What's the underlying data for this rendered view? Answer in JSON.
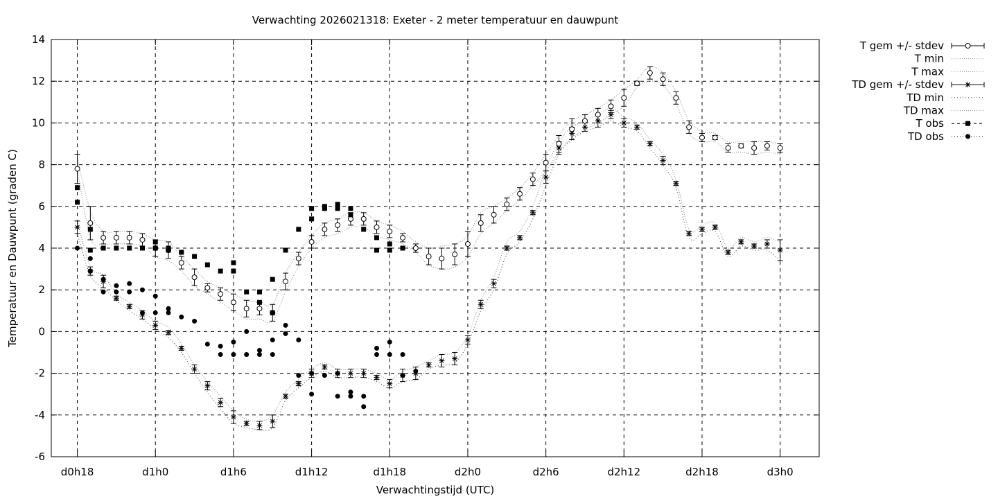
{
  "chart_data": {
    "type": "line",
    "title": "Verwachting 2026021318: Exeter - 2 meter temperatuur en dauwpunt",
    "xlabel": "Verwachtingstijd (UTC)",
    "ylabel": "Temperatuur en Dauwpunt (graden C)",
    "ylim": [
      -6,
      14
    ],
    "xlim": [
      -2,
      57
    ],
    "x_unit": "hours since d0h18",
    "yticks": [
      "-6",
      "-4",
      "-2",
      "0",
      "2",
      "4",
      "6",
      "8",
      "10",
      "12",
      "14"
    ],
    "xticks": [
      {
        "x": 0,
        "label": "d0h18"
      },
      {
        "x": 6,
        "label": "d1h0"
      },
      {
        "x": 12,
        "label": "d1h6"
      },
      {
        "x": 18,
        "label": "d1h12"
      },
      {
        "x": 24,
        "label": "d1h18"
      },
      {
        "x": 30,
        "label": "d2h0"
      },
      {
        "x": 36,
        "label": "d2h6"
      },
      {
        "x": 42,
        "label": "d2h12"
      },
      {
        "x": 48,
        "label": "d2h18"
      },
      {
        "x": 54,
        "label": "d3h0"
      }
    ],
    "grid": true,
    "legend_position": "outside-right",
    "legend": [
      "T gem +/- stdev",
      "T min",
      "T max",
      "TD gem +/- stdev",
      "TD min",
      "TD max",
      "T obs",
      "TD obs"
    ],
    "T_gem": {
      "x": [
        0,
        1,
        2,
        3,
        4,
        5,
        6,
        7,
        8,
        9,
        10,
        11,
        12,
        13,
        14,
        15,
        16,
        17,
        18,
        19,
        20,
        21,
        22,
        23,
        24,
        25,
        26,
        27,
        28,
        29,
        30,
        31,
        32,
        33,
        34,
        35,
        36,
        37,
        38,
        39,
        40,
        41,
        42,
        43,
        44,
        45,
        46,
        47,
        48,
        49,
        50,
        51,
        52,
        53,
        54
      ],
      "y": [
        7.8,
        5.2,
        4.5,
        4.5,
        4.5,
        4.4,
        4.0,
        3.9,
        3.3,
        2.6,
        2.1,
        1.8,
        1.4,
        1.1,
        1.1,
        0.9,
        2.4,
        3.5,
        4.3,
        4.9,
        5.1,
        5.4,
        5.4,
        5.0,
        4.8,
        4.5,
        4.0,
        3.6,
        3.5,
        3.7,
        4.2,
        5.2,
        5.6,
        6.1,
        6.6,
        7.3,
        8.1,
        9.0,
        9.7,
        10.1,
        10.4,
        10.8,
        11.2,
        11.9,
        12.4,
        12.1,
        11.2,
        9.8,
        9.3,
        9.3,
        8.8,
        8.9,
        8.8,
        8.9,
        8.8
      ],
      "err": [
        0.7,
        0.8,
        0.3,
        0.3,
        0.3,
        0.3,
        0.4,
        0.4,
        0.3,
        0.4,
        0.2,
        0.3,
        0.4,
        0.4,
        0.3,
        0.4,
        0.4,
        0.3,
        0.3,
        0.3,
        0.3,
        0.3,
        0.3,
        0.3,
        0.3,
        0.2,
        0.2,
        0.4,
        0.5,
        0.5,
        0.6,
        0.4,
        0.4,
        0.3,
        0.3,
        0.3,
        0.4,
        0.4,
        0.5,
        0.3,
        0.3,
        0.3,
        0.4,
        0.1,
        0.3,
        0.3,
        0.3,
        0.3,
        0.2,
        0.1,
        0.2,
        0.1,
        0.3,
        0.2,
        0.2
      ]
    },
    "T_min": [
      7.8,
      4.5,
      4.2,
      4.2,
      4.2,
      4.1,
      3.6,
      3.4,
      2.9,
      2.2,
      1.8,
      1.4,
      1.0,
      0.6,
      0.6,
      0.5,
      1.9,
      3.1,
      4.0,
      4.5,
      4.7,
      5.0,
      5.0,
      4.6,
      4.4,
      4.2,
      3.8,
      3.2,
      3.0,
      3.1,
      3.6,
      4.7,
      5.2,
      5.8,
      6.3,
      7.0,
      7.7,
      8.6,
      9.3,
      9.7,
      10.0,
      10.4,
      10.8,
      11.7,
      12.0,
      11.8,
      10.9,
      9.5,
      9.1,
      9.1,
      8.6,
      8.6,
      8.5,
      8.6,
      8.5
    ],
    "T_max": [
      8.3,
      5.8,
      4.8,
      4.8,
      4.8,
      4.7,
      4.4,
      4.3,
      3.6,
      3.0,
      2.4,
      2.1,
      1.8,
      1.5,
      1.4,
      1.3,
      2.8,
      3.8,
      4.6,
      5.2,
      5.4,
      5.7,
      5.7,
      5.3,
      5.1,
      4.8,
      4.3,
      4.0,
      4.1,
      4.2,
      4.6,
      5.7,
      6.0,
      6.4,
      6.9,
      7.6,
      8.5,
      9.4,
      10.1,
      10.4,
      10.7,
      11.1,
      11.6,
      12.1,
      12.7,
      12.4,
      11.5,
      10.1,
      9.6,
      9.5,
      9.1,
      9.1,
      9.1,
      9.1,
      9.0
    ],
    "TD_gem": {
      "x": [
        0,
        1,
        2,
        3,
        4,
        5,
        6,
        7,
        8,
        9,
        10,
        11,
        12,
        13,
        14,
        15,
        16,
        17,
        18,
        19,
        20,
        21,
        22,
        23,
        24,
        25,
        26,
        27,
        28,
        29,
        30,
        31,
        32,
        33,
        34,
        35,
        36,
        37,
        38,
        39,
        40,
        41,
        42,
        43,
        44,
        45,
        46,
        47,
        48,
        49,
        50,
        51,
        52,
        53,
        54
      ],
      "y": [
        5.0,
        2.9,
        2.4,
        1.6,
        1.2,
        0.8,
        0.3,
        -0.05,
        -0.8,
        -1.8,
        -2.6,
        -3.4,
        -4.1,
        -4.4,
        -4.5,
        -4.3,
        -3.1,
        -2.5,
        -2.0,
        -1.7,
        -2.0,
        -2.0,
        -2.0,
        -2.2,
        -2.5,
        -2.1,
        -2.0,
        -1.6,
        -1.4,
        -1.3,
        -0.4,
        1.3,
        2.3,
        4.0,
        4.5,
        5.7,
        7.4,
        8.8,
        9.5,
        9.8,
        10.1,
        10.4,
        10.0,
        9.8,
        9.0,
        8.2,
        7.1,
        4.7,
        4.9,
        5.0,
        3.8,
        4.3,
        4.1,
        4.2,
        3.9
      ],
      "err": [
        0.3,
        0.2,
        0.3,
        0.1,
        0.1,
        0.2,
        0.2,
        0.1,
        0.1,
        0.2,
        0.2,
        0.2,
        0.3,
        0.1,
        0.2,
        0.3,
        0.1,
        0.1,
        0.2,
        0.1,
        0.2,
        0.2,
        0.2,
        0.1,
        0.2,
        0.3,
        0.3,
        0.1,
        0.3,
        0.3,
        0.2,
        0.2,
        0.2,
        0.1,
        0.1,
        0.1,
        0.3,
        0.3,
        0.3,
        0.2,
        0.3,
        0.2,
        0.2,
        0.1,
        0.1,
        0.2,
        0.1,
        0.1,
        0.1,
        0.1,
        0.1,
        0.1,
        0.1,
        0.2,
        0.5
      ]
    },
    "TD_min": [
      4.7,
      2.7,
      2.1,
      1.5,
      1.0,
      0.6,
      0.1,
      -0.3,
      -1.0,
      -2.0,
      -2.9,
      -3.7,
      -4.4,
      -4.6,
      -4.7,
      -4.6,
      -3.3,
      -2.7,
      -2.2,
      -1.9,
      -2.2,
      -2.2,
      -2.2,
      -2.4,
      -2.7,
      -2.4,
      -2.3,
      -1.8,
      -1.6,
      -1.5,
      -0.6,
      1.0,
      2.0,
      3.7,
      4.3,
      5.4,
      7.0,
      8.5,
      9.2,
      9.6,
      9.8,
      10.1,
      9.8,
      9.6,
      8.8,
      8.0,
      6.9,
      4.5,
      4.7,
      4.8,
      3.6,
      4.1,
      3.9,
      3.9,
      3.4
    ],
    "TD_max": [
      5.3,
      3.1,
      2.7,
      1.8,
      1.4,
      1.0,
      0.5,
      0.2,
      -0.6,
      -1.6,
      -2.4,
      -3.1,
      -3.8,
      -4.2,
      -4.3,
      -4.0,
      -2.9,
      -2.3,
      -1.8,
      -1.5,
      -1.8,
      -1.8,
      -1.8,
      -2.0,
      -2.3,
      -1.9,
      -1.7,
      -1.4,
      -1.1,
      -1.0,
      -0.2,
      1.5,
      2.6,
      4.3,
      4.8,
      6.0,
      7.8,
      9.1,
      9.8,
      10.1,
      10.4,
      10.7,
      10.3,
      10.0,
      9.2,
      8.5,
      7.3,
      4.9,
      5.1,
      5.2,
      4.0,
      4.5,
      4.3,
      4.5,
      4.3
    ],
    "T_obs": {
      "x": [
        0,
        0,
        1,
        1,
        2,
        3,
        4,
        5,
        6,
        6,
        7,
        7,
        8,
        9,
        10,
        11,
        12,
        12,
        13,
        14,
        14,
        15,
        15,
        16,
        17,
        18,
        18,
        19,
        19,
        20,
        20,
        21,
        21,
        22,
        23,
        23,
        24,
        24,
        25
      ],
      "y": [
        6.2,
        6.9,
        3.9,
        4.9,
        4.0,
        4.0,
        4.0,
        4.0,
        4.0,
        4.3,
        3.9,
        4.0,
        3.8,
        3.6,
        3.2,
        2.9,
        2.9,
        3.3,
        1.9,
        1.4,
        1.9,
        0.9,
        2.5,
        3.9,
        4.9,
        5.4,
        5.9,
        5.9,
        6.0,
        5.9,
        6.1,
        5.6,
        5.9,
        4.9,
        4.5,
        3.9,
        3.9,
        4.2,
        4.0
      ]
    },
    "TD_obs": {
      "x": [
        0,
        1,
        1,
        2,
        2,
        3,
        3,
        4,
        4,
        5,
        5,
        6,
        6,
        7,
        7,
        8,
        9,
        10,
        11,
        11,
        12,
        12,
        13,
        13,
        14,
        14,
        15,
        15,
        16,
        16,
        17,
        17,
        18,
        18,
        19,
        20,
        20,
        21,
        21,
        22,
        22,
        23,
        23,
        24,
        24,
        25,
        25,
        26
      ],
      "y": [
        4.0,
        3.5,
        2.9,
        2.5,
        1.9,
        2.2,
        1.9,
        2.3,
        1.9,
        2.0,
        0.9,
        1.7,
        0.9,
        1.1,
        0.9,
        0.7,
        0.5,
        -0.6,
        -0.7,
        -1.1,
        -0.5,
        -1.1,
        0.0,
        -1.1,
        -0.9,
        -1.1,
        -0.4,
        -1.1,
        0.3,
        -0.1,
        -0.4,
        -2.1,
        -2.0,
        -3.0,
        -2.1,
        -2.0,
        -3.1,
        -2.9,
        -3.1,
        -3.1,
        -3.6,
        -0.8,
        -1.1,
        -0.5,
        -1.1,
        -1.1,
        -2.1,
        -1.9
      ]
    }
  }
}
